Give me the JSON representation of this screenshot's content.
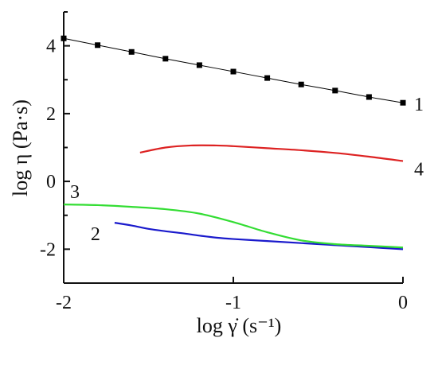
{
  "chart_data": {
    "type": "line",
    "title": "",
    "xlabel": "log γ̇ (s⁻¹)",
    "ylabel": "log η (Pa·s)",
    "xlim": [
      -2,
      0
    ],
    "ylim": [
      -3,
      5
    ],
    "xticks": [
      -2,
      -1,
      0
    ],
    "xtick_labels": [
      "-2",
      "-1",
      "0"
    ],
    "yticks": [
      -2,
      0,
      2,
      4
    ],
    "ytick_labels": [
      "-2",
      "0",
      "2",
      "4"
    ],
    "grid": false,
    "legend": "none",
    "series": [
      {
        "label": "1",
        "color": "#000000",
        "marker": "square",
        "line": "solid-thin",
        "x": [
          -2.0,
          -1.8,
          -1.6,
          -1.4,
          -1.2,
          -1.0,
          -0.8,
          -0.6,
          -0.4,
          -0.2,
          0.0
        ],
        "y": [
          4.22,
          4.02,
          3.82,
          3.62,
          3.43,
          3.24,
          3.05,
          2.86,
          2.68,
          2.49,
          2.32
        ]
      },
      {
        "label": "2",
        "color": "#1a1acc",
        "marker": "none",
        "line": "solid",
        "x": [
          -1.7,
          -1.6,
          -1.5,
          -1.4,
          -1.3,
          -1.2,
          -1.1,
          -1.0,
          -0.8,
          -0.6,
          -0.4,
          -0.2,
          0.0
        ],
        "y": [
          -1.22,
          -1.3,
          -1.4,
          -1.47,
          -1.53,
          -1.6,
          -1.66,
          -1.7,
          -1.76,
          -1.82,
          -1.88,
          -1.94,
          -2.0
        ]
      },
      {
        "label": "3",
        "color": "#33dd33",
        "marker": "none",
        "line": "solid",
        "x": [
          -2.0,
          -1.8,
          -1.6,
          -1.4,
          -1.2,
          -1.0,
          -0.8,
          -0.6,
          -0.4,
          -0.2,
          0.0
        ],
        "y": [
          -0.68,
          -0.7,
          -0.75,
          -0.82,
          -0.95,
          -1.2,
          -1.5,
          -1.74,
          -1.85,
          -1.9,
          -1.95
        ]
      },
      {
        "label": "4",
        "color": "#dd2222",
        "marker": "none",
        "line": "solid",
        "x": [
          -1.55,
          -1.4,
          -1.25,
          -1.1,
          -1.0,
          -0.8,
          -0.6,
          -0.4,
          -0.2,
          0.0
        ],
        "y": [
          0.85,
          1.0,
          1.06,
          1.06,
          1.04,
          0.98,
          0.92,
          0.84,
          0.73,
          0.6
        ]
      }
    ]
  }
}
